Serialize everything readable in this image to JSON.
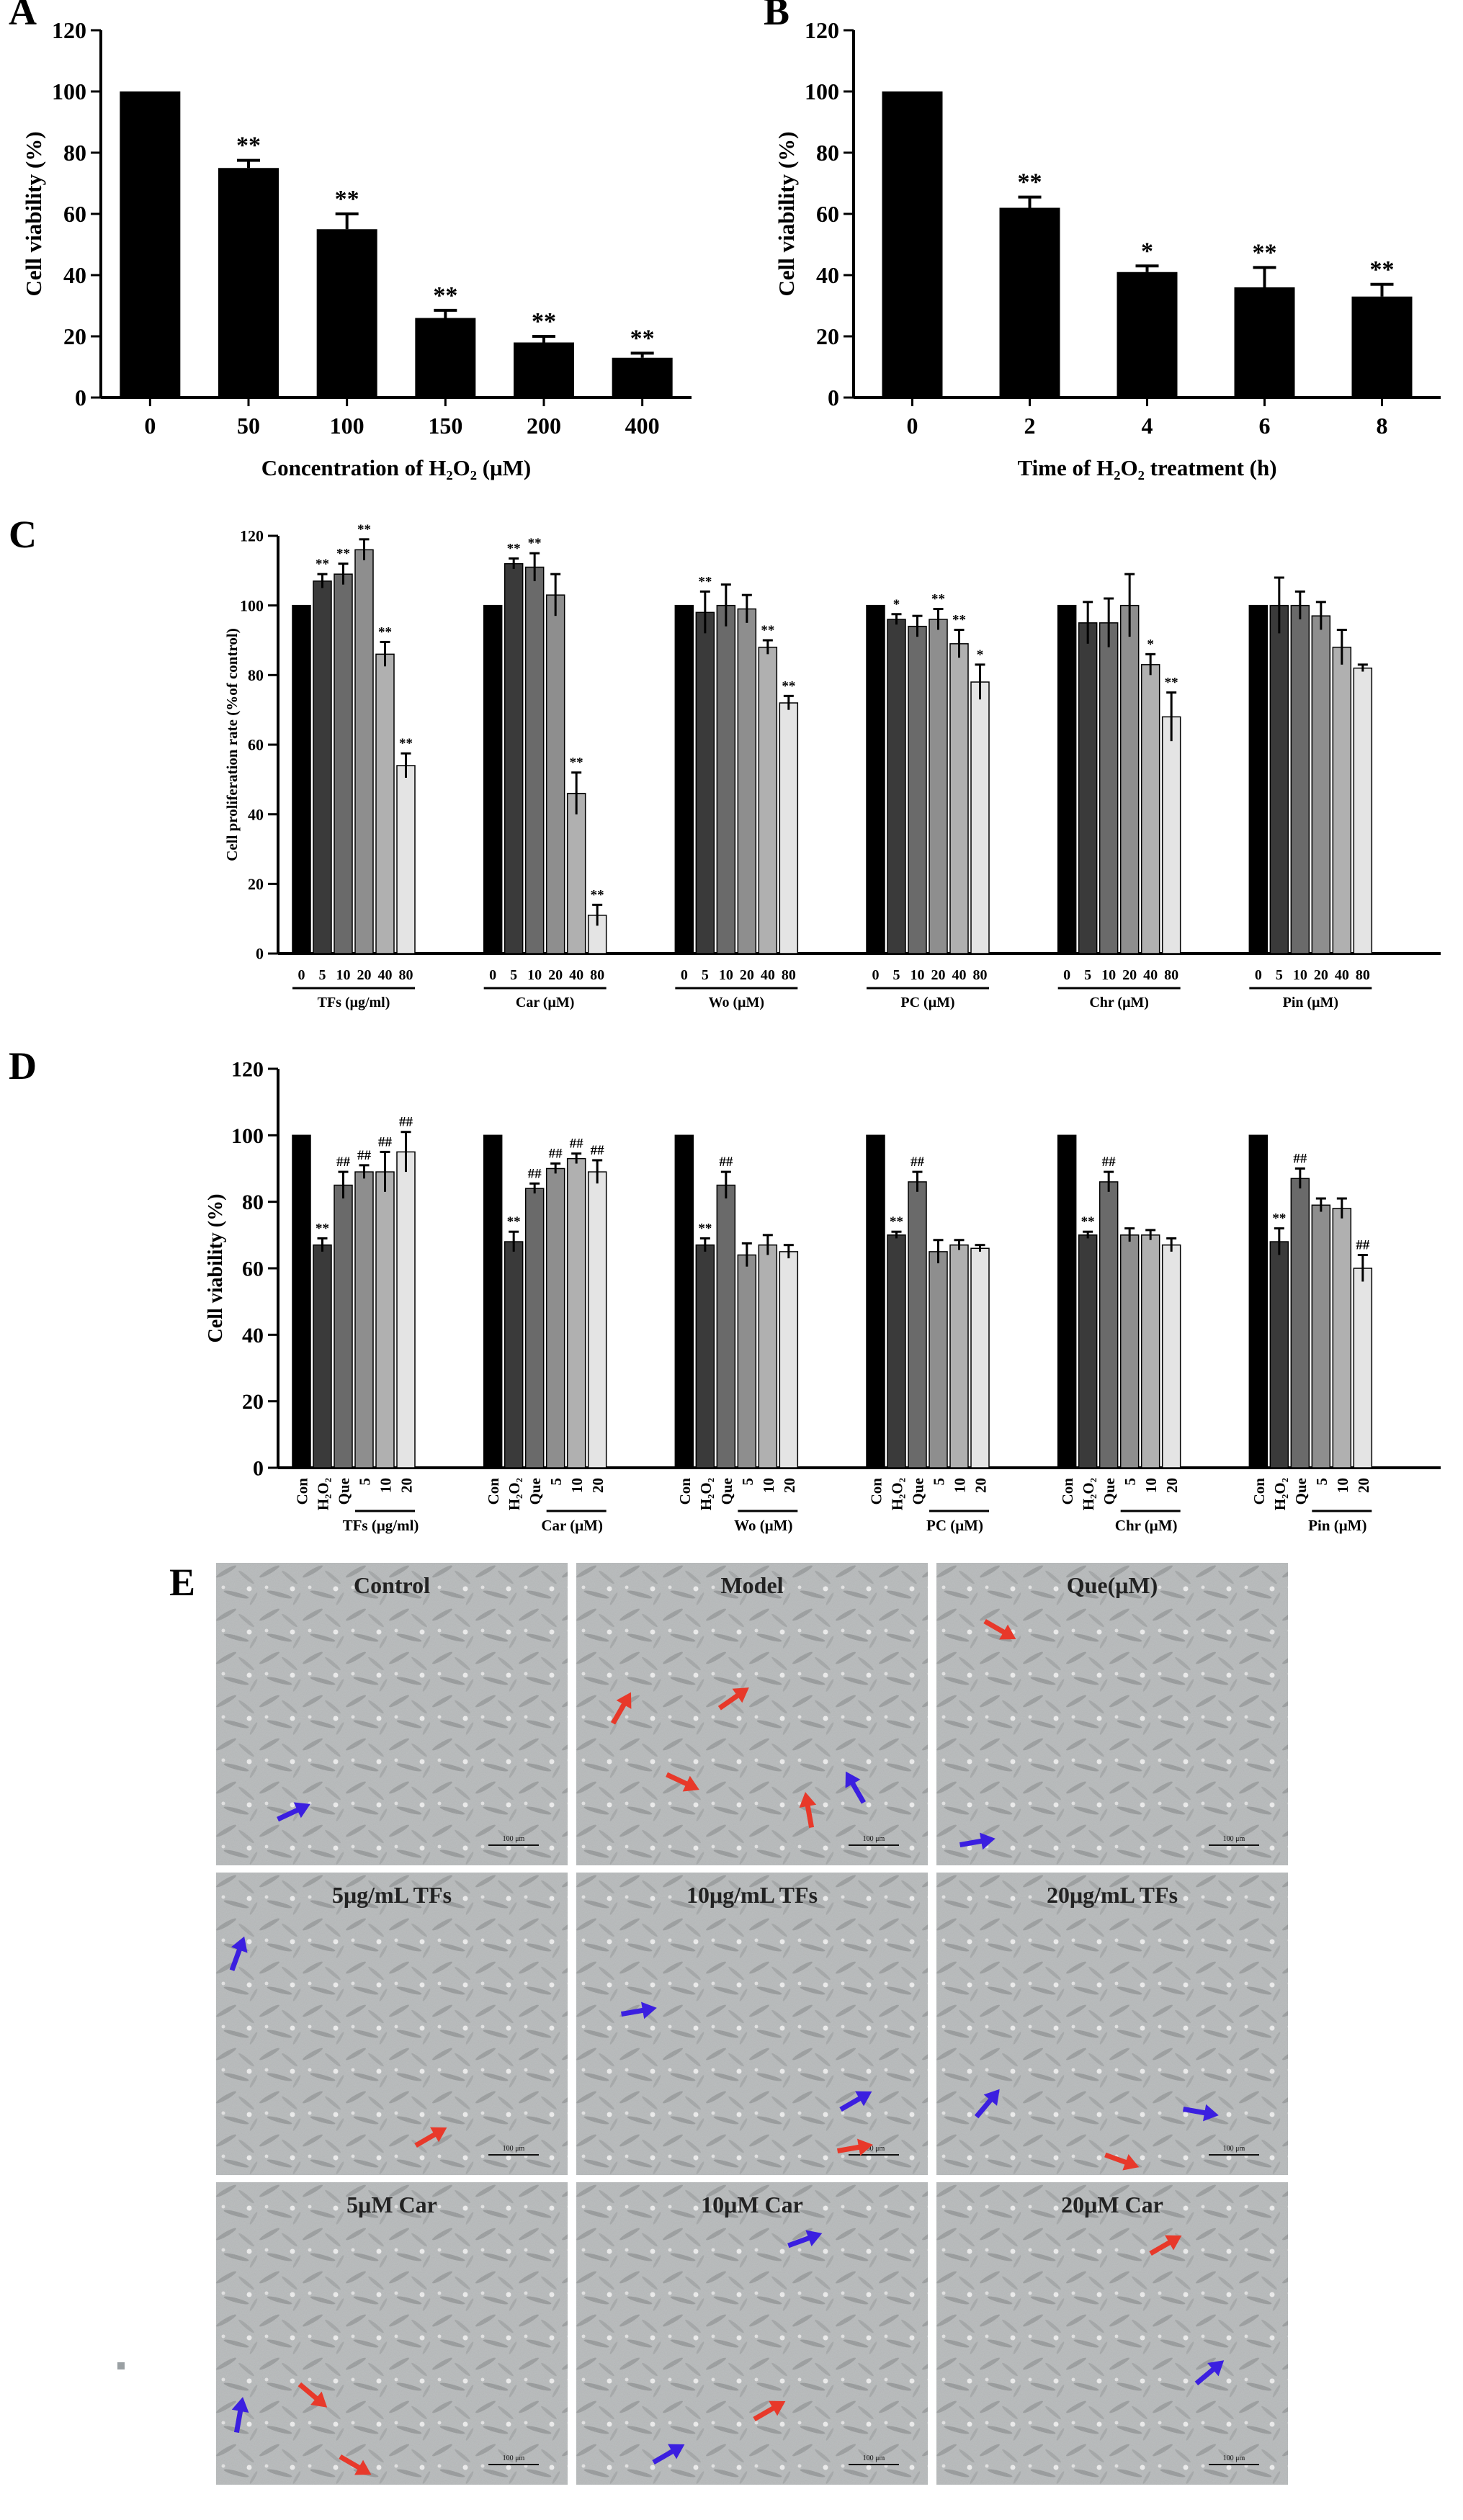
{
  "chart_data": [
    {
      "panel": "A",
      "type": "bar",
      "categories": [
        "0",
        "50",
        "100",
        "150",
        "200",
        "400"
      ],
      "values": [
        100,
        75,
        55,
        26,
        18,
        13
      ],
      "errors": [
        0,
        2.5,
        5,
        2.5,
        2,
        1.5
      ],
      "significance": [
        "",
        "**",
        "**",
        "**",
        "**",
        "**"
      ],
      "ylabel": "Cell viability (%)",
      "xlabel": "Concentration of H₂O₂ (μM)",
      "ylim": [
        0,
        120
      ],
      "yticks": [
        "0",
        "20",
        "40",
        "60",
        "80",
        "100",
        "120"
      ]
    },
    {
      "panel": "B",
      "type": "bar",
      "categories": [
        "0",
        "2",
        "4",
        "6",
        "8"
      ],
      "values": [
        100,
        62,
        41,
        36,
        33
      ],
      "errors": [
        0,
        3.5,
        2,
        6.5,
        4
      ],
      "significance": [
        "",
        "**",
        "*",
        "**",
        "**"
      ],
      "ylabel": "Cell viability (%)",
      "xlabel": "Time of H₂O₂ treatment (h)",
      "ylim": [
        0,
        120
      ],
      "yticks": [
        "0",
        "20",
        "40",
        "60",
        "80",
        "100",
        "120"
      ]
    },
    {
      "panel": "C",
      "type": "bar",
      "ylabel": "Cell proliferation rate (%of control)",
      "ylim": [
        0,
        120
      ],
      "yticks": [
        "0",
        "20",
        "40",
        "60",
        "80",
        "100",
        "120"
      ],
      "groups": [
        {
          "name": "TFs (μg/ml)",
          "categories": [
            "0",
            "5",
            "10",
            "20",
            "40",
            "80"
          ],
          "values": [
            100,
            107,
            109,
            116,
            86,
            54
          ],
          "errors": [
            0,
            2,
            3,
            3,
            3.5,
            3.5
          ],
          "significance": [
            "",
            "**",
            "**",
            "**",
            "**",
            "**"
          ]
        },
        {
          "name": "Car (μM)",
          "categories": [
            "0",
            "5",
            "10",
            "20",
            "40",
            "80"
          ],
          "values": [
            100,
            112,
            111,
            103,
            46,
            11
          ],
          "errors": [
            0,
            1.5,
            4,
            6,
            6,
            3
          ],
          "significance": [
            "",
            "**",
            "**",
            "",
            "**",
            "**"
          ]
        },
        {
          "name": "Wo (μM)",
          "categories": [
            "0",
            "5",
            "10",
            "20",
            "40",
            "80"
          ],
          "values": [
            100,
            98,
            100,
            99,
            88,
            72
          ],
          "errors": [
            0,
            6,
            6,
            4,
            2,
            2
          ],
          "significance": [
            "",
            "**",
            "",
            "",
            "**",
            "**"
          ]
        },
        {
          "name": "PC (μM)",
          "categories": [
            "0",
            "5",
            "10",
            "20",
            "40",
            "80"
          ],
          "values": [
            100,
            96,
            94,
            96,
            89,
            78
          ],
          "errors": [
            0,
            1.5,
            3,
            3,
            4,
            5
          ],
          "significance": [
            "",
            "*",
            "",
            "**",
            "**",
            "*"
          ]
        },
        {
          "name": "Chr (μM)",
          "categories": [
            "0",
            "5",
            "10",
            "20",
            "40",
            "80"
          ],
          "values": [
            100,
            95,
            95,
            100,
            83,
            68
          ],
          "errors": [
            0,
            6,
            7,
            9,
            3,
            7
          ],
          "significance": [
            "",
            "",
            "",
            "",
            "*",
            "**"
          ]
        },
        {
          "name": "Pin (μM)",
          "categories": [
            "0",
            "5",
            "10",
            "20",
            "40",
            "80"
          ],
          "values": [
            100,
            100,
            100,
            97,
            88,
            82
          ],
          "errors": [
            0,
            8,
            4,
            4,
            5,
            1
          ],
          "significance": [
            "",
            "",
            "",
            "",
            "",
            ""
          ]
        }
      ]
    },
    {
      "panel": "D",
      "type": "bar",
      "ylabel": "Cell viability (%)",
      "ylim": [
        0,
        120
      ],
      "yticks": [
        "0",
        "20",
        "40",
        "60",
        "80",
        "100",
        "120"
      ],
      "groups": [
        {
          "name": "TFs (μg/ml)",
          "categories": [
            "Con",
            "H₂O₂",
            "Que",
            "5",
            "10",
            "20"
          ],
          "values": [
            100,
            67,
            85,
            89,
            89,
            95
          ],
          "errors": [
            0,
            2,
            4,
            2,
            6,
            6
          ],
          "significance": [
            "",
            "**",
            "##",
            "##",
            "##",
            "##"
          ]
        },
        {
          "name": "Car (μM)",
          "categories": [
            "Con",
            "H₂O₂",
            "Que",
            "5",
            "10",
            "20"
          ],
          "values": [
            100,
            68,
            84,
            90,
            93,
            89
          ],
          "errors": [
            0,
            3,
            1.5,
            1.5,
            1.5,
            3.5
          ],
          "significance": [
            "",
            "**",
            "##",
            "##",
            "##",
            "##"
          ]
        },
        {
          "name": "Wo (μM)",
          "categories": [
            "Con",
            "H₂O₂",
            "Que",
            "5",
            "10",
            "20"
          ],
          "values": [
            100,
            67,
            85,
            64,
            67,
            65
          ],
          "errors": [
            0,
            2,
            4,
            3.5,
            3,
            2
          ],
          "significance": [
            "",
            "**",
            "##",
            "",
            "",
            ""
          ]
        },
        {
          "name": "PC (μM)",
          "categories": [
            "Con",
            "H₂O₂",
            "Que",
            "5",
            "10",
            "20"
          ],
          "values": [
            100,
            70,
            86,
            65,
            67,
            66
          ],
          "errors": [
            0,
            1,
            3,
            3.5,
            1.5,
            1
          ],
          "significance": [
            "",
            "**",
            "##",
            "",
            "",
            ""
          ]
        },
        {
          "name": "Chr (μM)",
          "categories": [
            "Con",
            "H₂O₂",
            "Que",
            "5",
            "10",
            "20"
          ],
          "values": [
            100,
            70,
            86,
            70,
            70,
            67
          ],
          "errors": [
            0,
            1,
            3,
            2,
            1.5,
            2
          ],
          "significance": [
            "",
            "**",
            "##",
            "",
            "",
            ""
          ]
        },
        {
          "name": "Pin (μM)",
          "categories": [
            "Con",
            "H₂O₂",
            "Que",
            "5",
            "10",
            "20"
          ],
          "values": [
            100,
            68,
            87,
            79,
            78,
            60
          ],
          "errors": [
            0,
            4,
            3,
            2,
            3,
            4
          ],
          "significance": [
            "",
            "**",
            "##",
            "",
            "",
            "##"
          ]
        }
      ]
    }
  ],
  "panel_e": {
    "label": "E",
    "tiles": [
      {
        "caption": "Control"
      },
      {
        "caption": "Model"
      },
      {
        "caption": "Que(μM)"
      },
      {
        "caption": "5μg/mL TFs"
      },
      {
        "caption": "10μg/mL TFs"
      },
      {
        "caption": "20μg/mL TFs"
      },
      {
        "caption": "5μM Car"
      },
      {
        "caption": "10μM Car"
      },
      {
        "caption": "20μM Car"
      }
    ],
    "scale_bar": "100 μm"
  },
  "colors": {
    "bar_black": "#000000",
    "shade_1": "#3a3a3a",
    "shade_2": "#6a6a6a",
    "shade_3": "#8e8e8e",
    "shade_4": "#b0b0b0",
    "shade_5": "#e4e4e4",
    "arrow_red": "#e8392a",
    "arrow_blue": "#3b1fe0",
    "micrograph_bg": "#b9bcbd"
  }
}
